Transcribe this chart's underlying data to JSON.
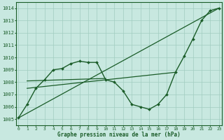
{
  "title": "Graphe pression niveau de la mer (hPa)",
  "bg_color": "#c8e8e0",
  "line_color": "#1a5c28",
  "grid_color": "#a0ccbf",
  "ylim": [
    1004.5,
    1014.5
  ],
  "xlim": [
    -0.3,
    23.3
  ],
  "yticks": [
    1005,
    1006,
    1007,
    1008,
    1009,
    1010,
    1011,
    1012,
    1013,
    1014
  ],
  "xticks": [
    0,
    1,
    2,
    3,
    4,
    5,
    6,
    7,
    8,
    9,
    10,
    11,
    12,
    13,
    14,
    15,
    16,
    17,
    18,
    19,
    20,
    21,
    22,
    23
  ],
  "main_x": [
    0,
    1,
    2,
    3,
    4,
    5,
    6,
    7,
    8,
    9,
    10,
    11,
    12,
    13,
    14,
    15,
    16,
    17,
    18,
    19,
    20,
    21,
    22,
    23
  ],
  "main_y": [
    1005.1,
    1006.2,
    1007.5,
    1008.2,
    1009.0,
    1009.1,
    1009.5,
    1009.7,
    1009.6,
    1009.6,
    1008.2,
    1008.0,
    1007.3,
    1006.2,
    1006.0,
    1005.8,
    1006.2,
    1007.0,
    1008.8,
    1010.1,
    1011.5,
    1013.0,
    1013.8,
    1014.0
  ],
  "trend1_x": [
    0,
    23
  ],
  "trend1_y": [
    1005.1,
    1014.0
  ],
  "trend2_x": [
    1,
    18
  ],
  "trend2_y": [
    1007.5,
    1008.8
  ],
  "trend3_x": [
    1,
    10
  ],
  "trend3_y": [
    1008.1,
    1008.3
  ]
}
